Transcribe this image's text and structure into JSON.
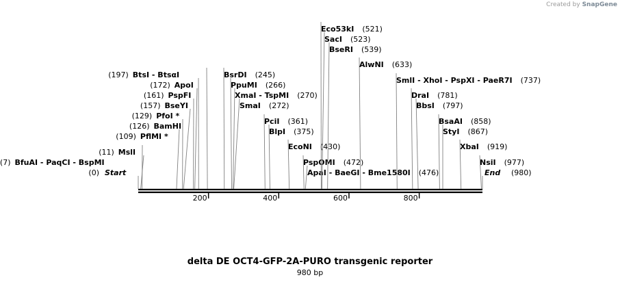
{
  "credit": {
    "prefix": "Created by",
    "brand": "SnapGene"
  },
  "title": "delta DE OCT4-GFP-2A-PURO transgenic reporter",
  "subtitle": "980 bp",
  "sequence": {
    "length": 980,
    "ticks": [
      "200",
      "400",
      "600",
      "800"
    ]
  },
  "features": [
    {
      "site": 0,
      "label_left": "(0)",
      "label_right": "Start",
      "italic": true
    },
    {
      "site": 980,
      "label_left": "End",
      "label_right": "(980)",
      "italic": true
    },
    {
      "site": 7,
      "label_left": "(7)",
      "label_right": "BfuAI  -  PaqCI  -  BspMI"
    },
    {
      "site": 11,
      "label_left": "(11)",
      "label_right": "MslI"
    },
    {
      "site": 109,
      "label_left": "(109)",
      "label_right": "PflMI *"
    },
    {
      "site": 126,
      "label_left": "(126)",
      "label_right": "BamHI"
    },
    {
      "site": 129,
      "label_left": "(129)",
      "label_right": "PfoI *"
    },
    {
      "site": 157,
      "label_left": "(157)",
      "label_right": "BseYI"
    },
    {
      "site": 161,
      "label_left": "(161)",
      "label_right": "PspFI"
    },
    {
      "site": 172,
      "label_left": "(172)",
      "label_right": "ApoI"
    },
    {
      "site": 197,
      "label_left": "(197)",
      "label_right": "BtsI  -  BtsαI"
    },
    {
      "site": 245,
      "label_left": "BsrDI",
      "label_right": "(245)"
    },
    {
      "site": 266,
      "label_left": "PpuMI",
      "label_right": "(266)"
    },
    {
      "site": 270,
      "label_left": "XmaI  -  TspMI",
      "label_right": "(270)"
    },
    {
      "site": 272,
      "label_left": "SmaI",
      "label_right": "(272)"
    },
    {
      "site": 361,
      "label_left": "PciI",
      "label_right": "(361)"
    },
    {
      "site": 375,
      "label_left": "BlpI",
      "label_right": "(375)"
    },
    {
      "site": 430,
      "label_left": "EcoNI",
      "label_right": "(430)"
    },
    {
      "site": 472,
      "label_left": "PspOMI",
      "label_right": "(472)"
    },
    {
      "site": 476,
      "label_left": "ApaI  -  BaeGI  -  Bme1580I",
      "label_right": "(476)"
    },
    {
      "site": 521,
      "label_left": "Eco53kI",
      "label_right": "(521)"
    },
    {
      "site": 523,
      "label_left": "SacI",
      "label_right": "(523)"
    },
    {
      "site": 539,
      "label_left": "BseRI",
      "label_right": "(539)"
    },
    {
      "site": 633,
      "label_left": "AlwNI",
      "label_right": "(633)"
    },
    {
      "site": 737,
      "label_left": "SmlI  -  XhoI  -  PspXI  -  PaeR7I",
      "label_right": "(737)"
    },
    {
      "site": 781,
      "label_left": "DraI",
      "label_right": "(781)"
    },
    {
      "site": 797,
      "label_left": "BbsI",
      "label_right": "(797)"
    },
    {
      "site": 858,
      "label_left": "BsaAI",
      "label_right": "(858)"
    },
    {
      "site": 867,
      "label_left": "StyI",
      "label_right": "(867)"
    },
    {
      "site": 919,
      "label_left": "XbaI",
      "label_right": "(919)"
    },
    {
      "site": 977,
      "label_left": "NsiI",
      "label_right": "(977)"
    }
  ]
}
